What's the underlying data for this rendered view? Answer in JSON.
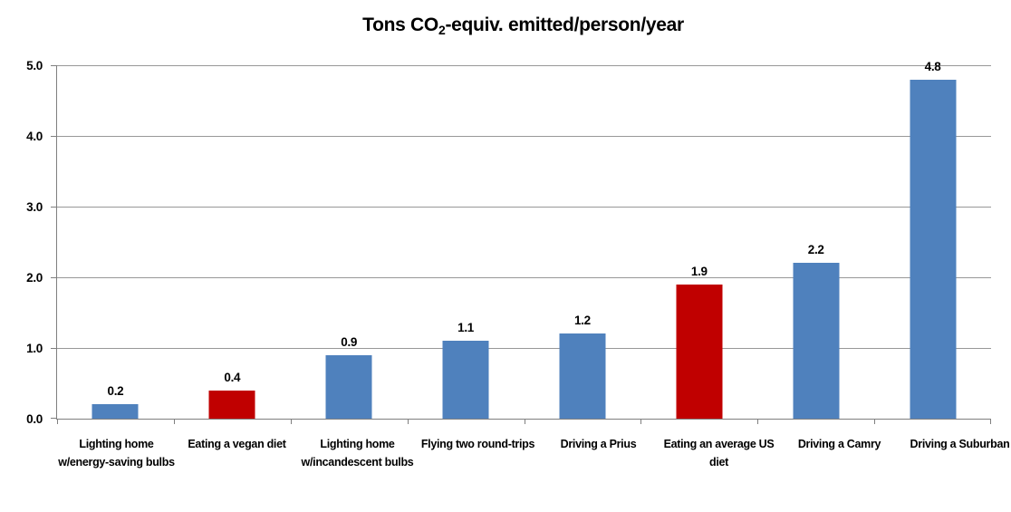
{
  "title": {
    "prefix": "Tons CO",
    "sub": "2",
    "suffix": "-equiv. emitted/person/year"
  },
  "chart_data": {
    "type": "bar",
    "title": "Tons CO2-equiv. emitted/person/year",
    "categories": [
      "Lighting home w/energy-saving bulbs",
      "Eating a vegan diet",
      "Lighting home w/incandescent bulbs",
      "Flying two round-trips",
      "Driving a Prius",
      "Eating an average US diet",
      "Driving a Camry",
      "Driving a Suburban"
    ],
    "values": [
      0.2,
      0.4,
      0.9,
      1.1,
      1.2,
      1.9,
      2.2,
      4.8
    ],
    "value_labels": [
      "0.2",
      "0.4",
      "0.9",
      "1.1",
      "1.2",
      "1.9",
      "2.2",
      "4.8"
    ],
    "bar_color_keys": [
      "blue",
      "red",
      "blue",
      "blue",
      "blue",
      "red",
      "blue",
      "blue"
    ],
    "colors": {
      "blue": "#4F81BD",
      "red": "#C00000"
    },
    "xlabel": "",
    "ylabel": "",
    "ylim": [
      0,
      5
    ],
    "y_ticks": [
      "0.0",
      "1.0",
      "2.0",
      "3.0",
      "4.0",
      "5.0"
    ],
    "grid": true,
    "legend_position": "none",
    "gridline_color": "#989898",
    "axis_color": "#7f7f7f",
    "text_color": "#000000"
  }
}
